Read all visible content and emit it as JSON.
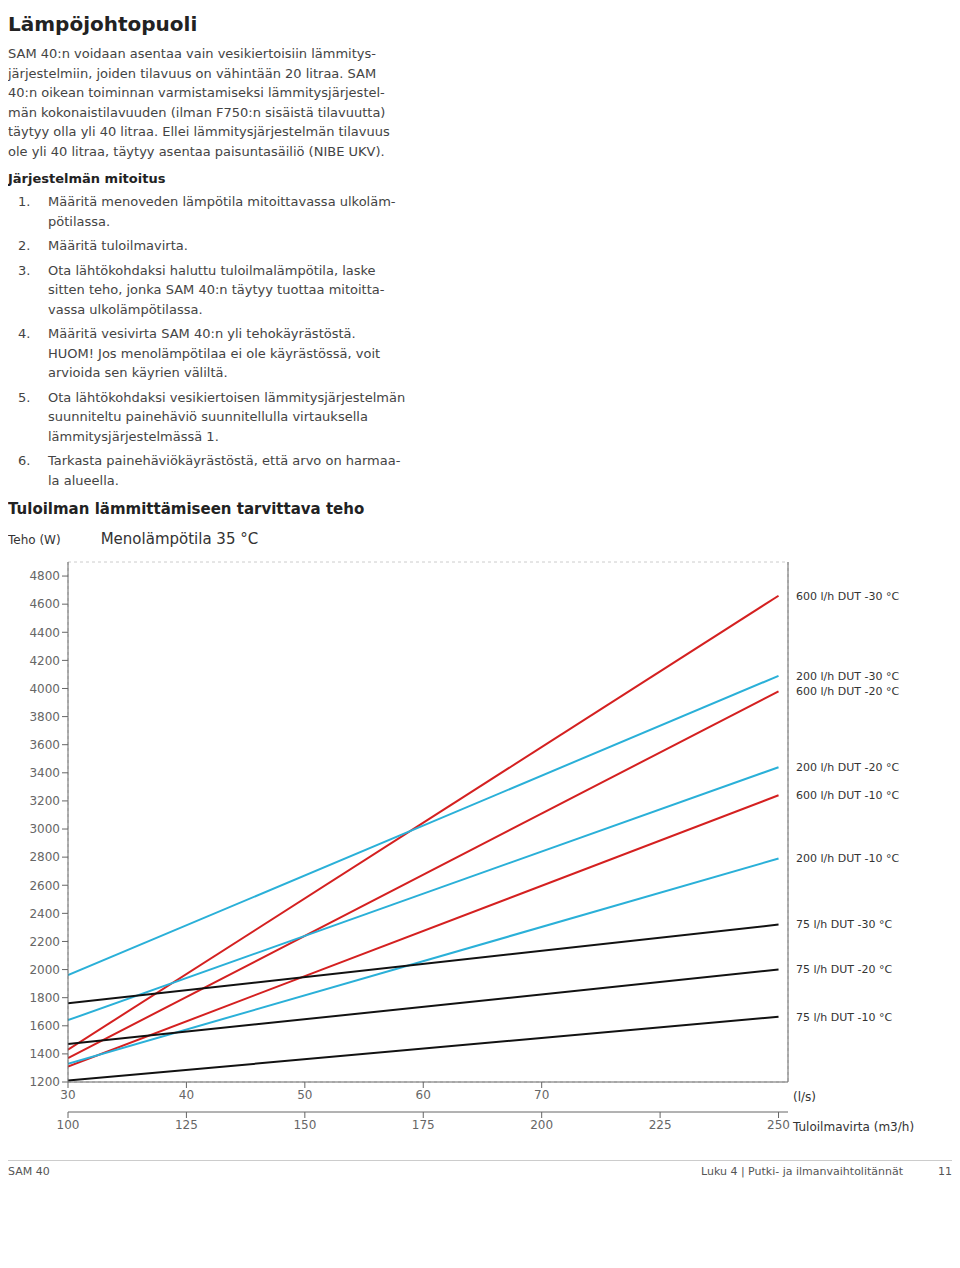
{
  "page_title": "Lämpöjohtopuoli",
  "body_text": "SAM 40:n voidaan asentaa vain vesikiertoisiin lämmitys-\njärjestelmiin, joiden tilavuus on vähintään 20 litraa. SAM\n40:n oikean toiminnan varmistamiseksi lämmitysjärjestel-\nmän kokonaistilavuuden (ilman F750:n sisäistä tilavuutta)\ntäytyy olla yli 40 litraa. Ellei lämmitysjärjestelmän tilavuus\nole yli 40 litraa, täytyy asentaa paisuntasäiliö (NIBE UKV).",
  "section_header": "Järjestelmän mitoitus",
  "section_items": [
    [
      "1.",
      "Määritä menoveden lämpötila mitoittavassa ulkoläm-\npötilassa."
    ],
    [
      "2.",
      "Määritä tuloilmavirta."
    ],
    [
      "3.",
      "Ota lähtökohdaksi haluttu tuloilmalämpötila, laske\nsitten teho, jonka SAM 40:n täytyy tuottaa mitoitta-\nvassa ulkolämpötilassa."
    ],
    [
      "4.",
      "Määritä vesivirta SAM 40:n yli tehokäyrästöstä.\nHUOM! Jos menolämpötilaa ei ole käyrästössä, voit\narvioida sen käyrien väliltä."
    ],
    [
      "5.",
      "Ota lähtökohdaksi vesikiertoisen lämmitysjärjestelmän\nsuunniteltu painehäviö suunnitellulla virtauksella\nlämmitysjärjestelmässä 1."
    ],
    [
      "6.",
      "Tarkasta painehäviökäyrästöstä, että arvo on harmaa-\nla alueella."
    ]
  ],
  "section2_header": "Tuloilman lämmittämiseen tarvittava teho",
  "footer_left": "SAM 40",
  "footer_right": "Luku 4 | Putki- ja ilmanvaihtolitännät          11",
  "chart_data": {
    "type": "line",
    "title": "Menolämpötila 35 °C",
    "ylabel": "Teho (W)",
    "xlabel": "Tuloilmavirta (m3/h)",
    "x2label": "(l/s)",
    "xlim": [
      100,
      252
    ],
    "ylim": [
      1200,
      4900
    ],
    "xticks": [
      100,
      125,
      150,
      175,
      200,
      225,
      250
    ],
    "x2ticks": [
      {
        "value": 100,
        "label": "30"
      },
      {
        "value": 125,
        "label": "40"
      },
      {
        "value": 150,
        "label": "50"
      },
      {
        "value": 175,
        "label": "60"
      },
      {
        "value": 200,
        "label": "70"
      }
    ],
    "yticks": [
      1200,
      1400,
      1600,
      1800,
      2000,
      2200,
      2400,
      2600,
      2800,
      3000,
      3200,
      3400,
      3600,
      3800,
      4000,
      4200,
      4400,
      4600,
      4800
    ],
    "grid": true,
    "series": [
      {
        "name": "600 l/h DUT -30 °C",
        "color": "#d42020",
        "x": [
          100,
          250
        ],
        "values": [
          1430,
          4660
        ]
      },
      {
        "name": "200 l/h DUT -30 °C",
        "color": "#2ab0d8",
        "x": [
          100,
          250
        ],
        "values": [
          1960,
          4090
        ]
      },
      {
        "name": "600 l/h DUT -20 °C",
        "color": "#d42020",
        "x": [
          100,
          250
        ],
        "values": [
          1370,
          3980
        ]
      },
      {
        "name": "200 l/h DUT -20 °C",
        "color": "#2ab0d8",
        "x": [
          100,
          250
        ],
        "values": [
          1640,
          3440
        ]
      },
      {
        "name": "600 l/h DUT -10 °C",
        "color": "#d42020",
        "x": [
          100,
          250
        ],
        "values": [
          1310,
          3240
        ]
      },
      {
        "name": "200 l/h DUT -10 °C",
        "color": "#2ab0d8",
        "x": [
          100,
          250
        ],
        "values": [
          1330,
          2790
        ]
      },
      {
        "name": "75 l/h DUT -30 °C",
        "color": "#111111",
        "x": [
          100,
          250
        ],
        "values": [
          1760,
          2320
        ]
      },
      {
        "name": "75 l/h DUT -20 °C",
        "color": "#111111",
        "x": [
          100,
          250
        ],
        "values": [
          1470,
          2000
        ]
      },
      {
        "name": "75 l/h DUT -10 °C",
        "color": "#111111",
        "x": [
          100,
          250
        ],
        "values": [
          1210,
          1665
        ]
      }
    ]
  }
}
